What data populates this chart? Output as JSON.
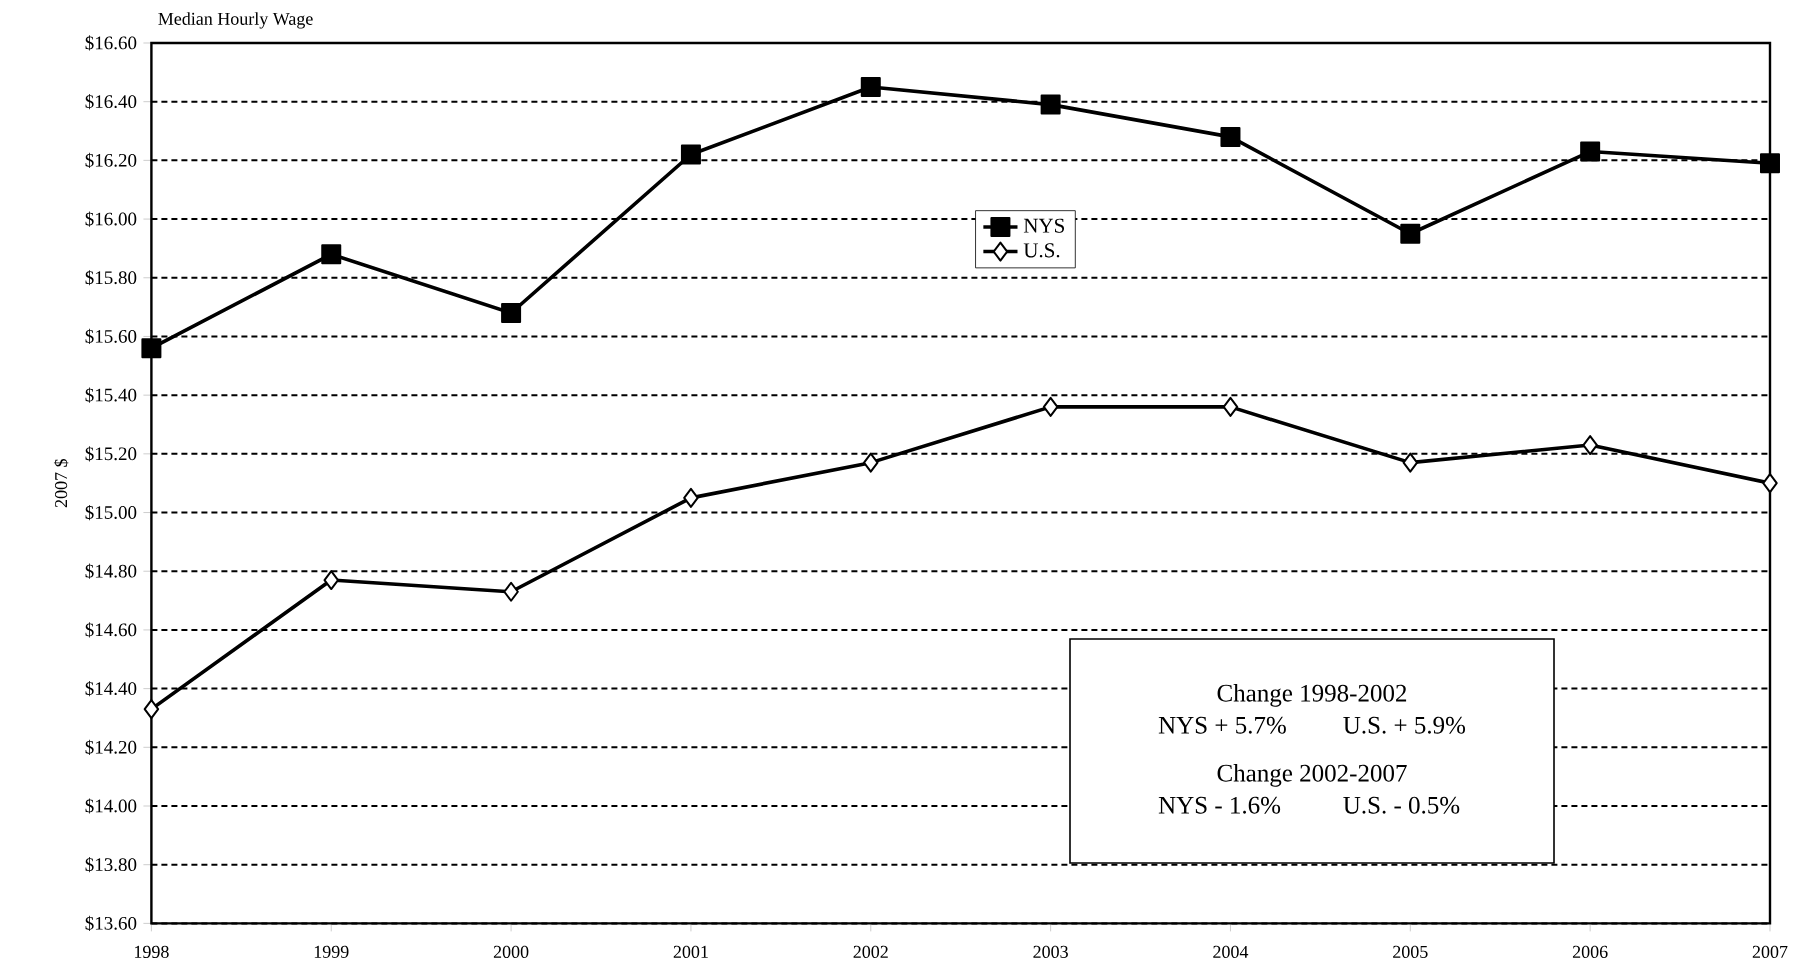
{
  "chart_data": {
    "type": "line",
    "title": "Median Hourly Wage",
    "ylabel": "2007 $",
    "categories": [
      "1998",
      "1999",
      "2000",
      "2001",
      "2002",
      "2003",
      "2004",
      "2005",
      "2006",
      "2007"
    ],
    "series": [
      {
        "name": "NYS",
        "color": "#000000",
        "marker": "square",
        "values": [
          15.56,
          15.88,
          15.68,
          16.22,
          16.45,
          16.39,
          16.28,
          15.95,
          16.23,
          16.19
        ]
      },
      {
        "name": "U.S.",
        "color": "#000000",
        "marker": "diamond",
        "values": [
          14.33,
          14.77,
          14.73,
          15.05,
          15.17,
          15.36,
          15.36,
          15.17,
          15.23,
          15.1
        ]
      }
    ],
    "ylim": [
      13.6,
      16.6
    ],
    "yticks": [
      {
        "value": 13.6,
        "label": "$13.60"
      },
      {
        "value": 13.8,
        "label": "$13.80"
      },
      {
        "value": 14.0,
        "label": "$14.00"
      },
      {
        "value": 14.2,
        "label": "$14.20"
      },
      {
        "value": 14.4,
        "label": "$14.40"
      },
      {
        "value": 14.6,
        "label": "$14.60"
      },
      {
        "value": 14.8,
        "label": "$14.80"
      },
      {
        "value": 15.0,
        "label": "$15.00"
      },
      {
        "value": 15.2,
        "label": "$15.20"
      },
      {
        "value": 15.4,
        "label": "$15.40"
      },
      {
        "value": 15.6,
        "label": "$15.60"
      },
      {
        "value": 15.8,
        "label": "$15.80"
      },
      {
        "value": 16.0,
        "label": "$16.00"
      },
      {
        "value": 16.2,
        "label": "$16.20"
      },
      {
        "value": 16.4,
        "label": "$16.40"
      },
      {
        "value": 16.6,
        "label": "$16.60"
      }
    ],
    "grid": "y",
    "line_style": "solid",
    "legend": "top",
    "annotations": [
      "Change 1998-2002",
      "NYS + 5.7%",
      "U.S. + 5.9%",
      "Change 2002-2007",
      "NYS - 1.6%",
      "U.S. - 0.5%"
    ]
  }
}
